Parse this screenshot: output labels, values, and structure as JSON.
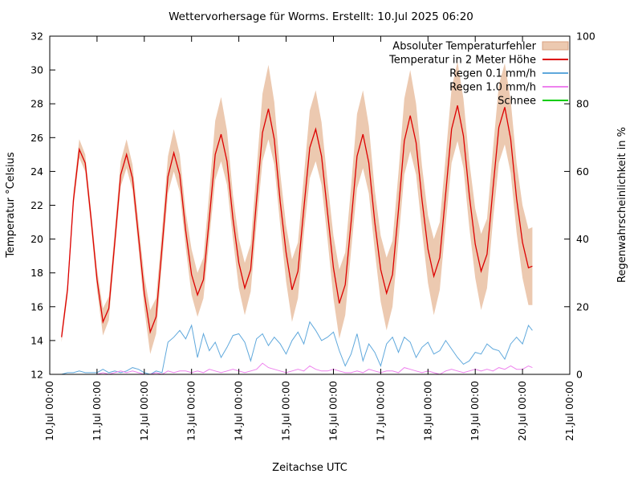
{
  "chart_data": {
    "type": "line",
    "title": "Wettervorhersage für Worms. Erstellt: 10.Jul 2025 06:20",
    "xlabel": "Zeitachse UTC",
    "ylabel_left": "Temperatur °Celsius",
    "ylabel_right": "Regenwahrscheinlichkeit in %",
    "grid": false,
    "legend_position": "top-right-inside",
    "x_range_hours": [
      0,
      264
    ],
    "y_left_range": [
      12,
      32
    ],
    "y_right_range": [
      0,
      100
    ],
    "y_left_ticks": [
      12,
      14,
      16,
      18,
      20,
      22,
      24,
      26,
      28,
      30,
      32
    ],
    "y_right_ticks": [
      0,
      20,
      40,
      60,
      80,
      100
    ],
    "x_tick_hours": [
      0,
      24,
      48,
      72,
      96,
      120,
      144,
      168,
      192,
      216,
      240,
      264
    ],
    "x_tick_labels": [
      "10.Jul 00:00",
      "11.Jul 00:00",
      "12.Jul 00:00",
      "13.Jul 00:00",
      "14.Jul 00:00",
      "15.Jul 00:00",
      "16.Jul 00:00",
      "17.Jul 00:00",
      "18.Jul 00:00",
      "19.Jul 00:00",
      "20.Jul 00:00",
      "21.Jul 00:00"
    ],
    "colors": {
      "axis": "#000000",
      "band_fill": "#ecc9b0",
      "band_edge": "#d9a181",
      "temperature": "#dd0000",
      "rain01": "#5fa8dc",
      "rain10": "#ee82ee",
      "snow": "#00cc00"
    },
    "x_hours": [
      6,
      9,
      12,
      15,
      18,
      21,
      24,
      27,
      30,
      33,
      36,
      39,
      42,
      45,
      48,
      51,
      54,
      57,
      60,
      63,
      66,
      69,
      72,
      75,
      78,
      81,
      84,
      87,
      90,
      93,
      96,
      99,
      102,
      105,
      108,
      111,
      114,
      117,
      120,
      123,
      126,
      129,
      132,
      135,
      138,
      141,
      144,
      147,
      150,
      153,
      156,
      159,
      162,
      165,
      168,
      171,
      174,
      177,
      180,
      183,
      186,
      189,
      192,
      195,
      198,
      201,
      204,
      207,
      210,
      213,
      216,
      219,
      222,
      225,
      228,
      231,
      234,
      237,
      240,
      243,
      245
    ],
    "series": [
      {
        "name": "Absoluter Temperaturfehler",
        "type": "band",
        "axis": "left",
        "fill": "#ecc9b0",
        "edge": "#d9a181",
        "center_series": "Temperatur in 2 Meter Höhe",
        "err_high": [
          0.3,
          0.4,
          0.5,
          0.6,
          0.5,
          0.5,
          0.6,
          0.8,
          0.7,
          0.7,
          0.8,
          0.9,
          0.8,
          0.8,
          1.0,
          1.3,
          1.1,
          1.0,
          1.2,
          1.4,
          1.2,
          1.1,
          1.5,
          1.3,
          1.3,
          1.6,
          2.0,
          2.2,
          1.8,
          1.4,
          1.4,
          1.5,
          1.5,
          1.8,
          2.3,
          2.6,
          2.2,
          1.7,
          1.6,
          1.8,
          1.7,
          1.9,
          2.2,
          2.3,
          2.0,
          1.8,
          1.9,
          2.0,
          1.9,
          2.1,
          2.5,
          2.6,
          2.2,
          1.9,
          2.0,
          2.1,
          2.0,
          2.2,
          2.5,
          2.7,
          2.3,
          2.0,
          2.0,
          2.2,
          2.1,
          2.2,
          2.4,
          2.6,
          2.2,
          2.0,
          2.1,
          2.2,
          2.1,
          2.3,
          2.5,
          2.6,
          2.3,
          2.1,
          2.2,
          2.3,
          2.3
        ],
        "err_low": [
          0.3,
          0.4,
          0.4,
          0.5,
          0.5,
          0.5,
          0.6,
          0.8,
          0.7,
          0.6,
          0.7,
          0.8,
          0.7,
          0.7,
          0.9,
          1.3,
          1.0,
          0.9,
          1.0,
          1.1,
          1.0,
          1.0,
          1.2,
          1.3,
          1.1,
          1.2,
          1.5,
          1.6,
          1.4,
          1.2,
          1.5,
          1.6,
          1.3,
          1.4,
          1.7,
          1.8,
          1.5,
          1.4,
          1.7,
          1.9,
          1.6,
          1.5,
          1.8,
          1.9,
          1.7,
          1.6,
          1.8,
          2.1,
          1.8,
          1.7,
          1.9,
          2.0,
          1.8,
          1.7,
          1.9,
          2.2,
          1.9,
          1.8,
          2.0,
          2.1,
          1.9,
          1.8,
          2.0,
          2.3,
          1.9,
          1.8,
          2.0,
          2.1,
          1.9,
          1.9,
          2.0,
          2.3,
          2.0,
          1.9,
          2.1,
          2.2,
          2.0,
          2.0,
          2.1,
          2.2,
          2.3
        ]
      },
      {
        "name": "Temperatur in 2 Meter Höhe",
        "type": "line",
        "axis": "left",
        "color": "#dd0000",
        "width": 1.3,
        "values": [
          14.2,
          17.0,
          22.3,
          25.3,
          24.5,
          21.2,
          17.6,
          15.1,
          15.9,
          19.8,
          23.8,
          25.0,
          23.6,
          20.2,
          16.8,
          14.5,
          15.4,
          19.5,
          23.7,
          25.1,
          23.8,
          20.5,
          17.9,
          16.7,
          17.6,
          21.2,
          25.0,
          26.2,
          24.6,
          21.2,
          18.6,
          17.1,
          18.2,
          22.3,
          26.3,
          27.7,
          25.9,
          22.2,
          19.2,
          17.0,
          18.1,
          21.8,
          25.4,
          26.5,
          24.9,
          21.6,
          18.3,
          16.2,
          17.3,
          21.0,
          24.9,
          26.2,
          24.5,
          21.0,
          18.2,
          16.8,
          17.9,
          21.7,
          25.8,
          27.3,
          25.7,
          22.3,
          19.4,
          17.8,
          18.9,
          22.7,
          26.5,
          27.9,
          26.1,
          22.6,
          19.7,
          18.1,
          19.1,
          23.0,
          26.6,
          27.8,
          25.9,
          22.4,
          19.8,
          18.3,
          18.4
        ]
      },
      {
        "name": "Regen 0.1 mm/h",
        "type": "line",
        "axis": "right",
        "color": "#5fa8dc",
        "width": 1,
        "values": [
          0,
          0.5,
          0.5,
          1,
          0.5,
          0.5,
          0.5,
          1.5,
          0.5,
          1,
          0.5,
          1,
          2,
          1.5,
          0.5,
          0,
          1,
          0.5,
          9.5,
          11,
          13,
          10.5,
          14.5,
          5,
          12,
          7,
          9.5,
          5,
          8,
          11.5,
          12,
          9.5,
          4,
          10.5,
          12,
          8.5,
          11,
          9,
          6,
          10,
          12.5,
          9,
          15.5,
          13,
          10,
          11,
          12.5,
          7,
          2.5,
          6,
          12,
          4,
          9,
          6.5,
          2.5,
          9,
          11,
          6.5,
          11,
          9.5,
          5,
          8,
          9.5,
          6,
          7,
          10,
          7.5,
          5,
          3,
          4,
          6.5,
          6,
          9,
          7.5,
          7,
          4.5,
          9,
          11,
          9,
          14.5,
          13
        ]
      },
      {
        "name": "Regen 1.0 mm/h",
        "type": "line",
        "axis": "right",
        "color": "#ee82ee",
        "width": 1,
        "values": [
          0,
          0,
          0,
          0,
          0,
          0,
          0,
          0.5,
          0,
          0.5,
          1,
          0.5,
          1,
          0.5,
          0,
          0,
          0.5,
          0,
          1,
          0.5,
          1,
          1,
          0.5,
          1,
          0.5,
          1.5,
          1,
          0.5,
          1,
          1.5,
          1,
          0.5,
          1,
          1.5,
          3.3,
          2,
          1.5,
          1,
          0.5,
          1,
          1.5,
          1,
          2.5,
          1.5,
          1,
          1,
          1.5,
          1,
          0.5,
          0.5,
          1,
          0.5,
          1.5,
          1,
          0.5,
          1,
          1,
          0.5,
          2,
          1.5,
          1,
          0.5,
          1,
          0.5,
          0,
          1,
          1.5,
          1,
          0.5,
          1,
          1.5,
          1,
          1.5,
          1,
          2,
          1.5,
          2.5,
          1.5,
          1.5,
          2.5,
          2
        ]
      },
      {
        "name": "Schnee",
        "type": "line",
        "axis": "right",
        "color": "#00cc00",
        "width": 1,
        "values": []
      }
    ]
  }
}
